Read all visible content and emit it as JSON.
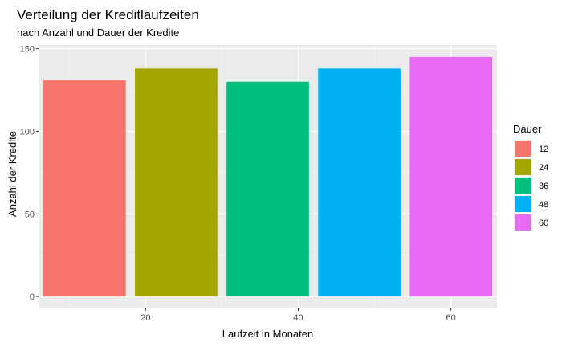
{
  "chart_data": {
    "type": "bar",
    "title": "Verteilung der Kreditlaufzeiten",
    "subtitle": "nach Anzahl und Dauer der Kredite",
    "xlabel": "Laufzeit in Monaten",
    "ylabel": "Anzahl der Kredite",
    "x": [
      12,
      24,
      36,
      48,
      60
    ],
    "values": [
      131,
      138,
      130,
      138,
      145
    ],
    "bar_width": 10.8,
    "xlim": [
      5.97,
      66.03
    ],
    "ylim": [
      -7.25,
      152.25
    ],
    "xticks": [
      20,
      40,
      60
    ],
    "yticks": [
      0,
      50,
      100,
      150
    ],
    "x_minor": [
      10,
      30,
      50
    ],
    "y_minor": [
      25,
      75,
      125
    ],
    "grid": true,
    "panel_background": "#EBEBEB",
    "legend": {
      "title": "Dauer",
      "position": "right",
      "entries": [
        {
          "label": "12",
          "color": "#F8766D"
        },
        {
          "label": "24",
          "color": "#A3A500"
        },
        {
          "label": "36",
          "color": "#00BF7D"
        },
        {
          "label": "48",
          "color": "#00B0F6"
        },
        {
          "label": "60",
          "color": "#E76BF3"
        }
      ]
    }
  }
}
